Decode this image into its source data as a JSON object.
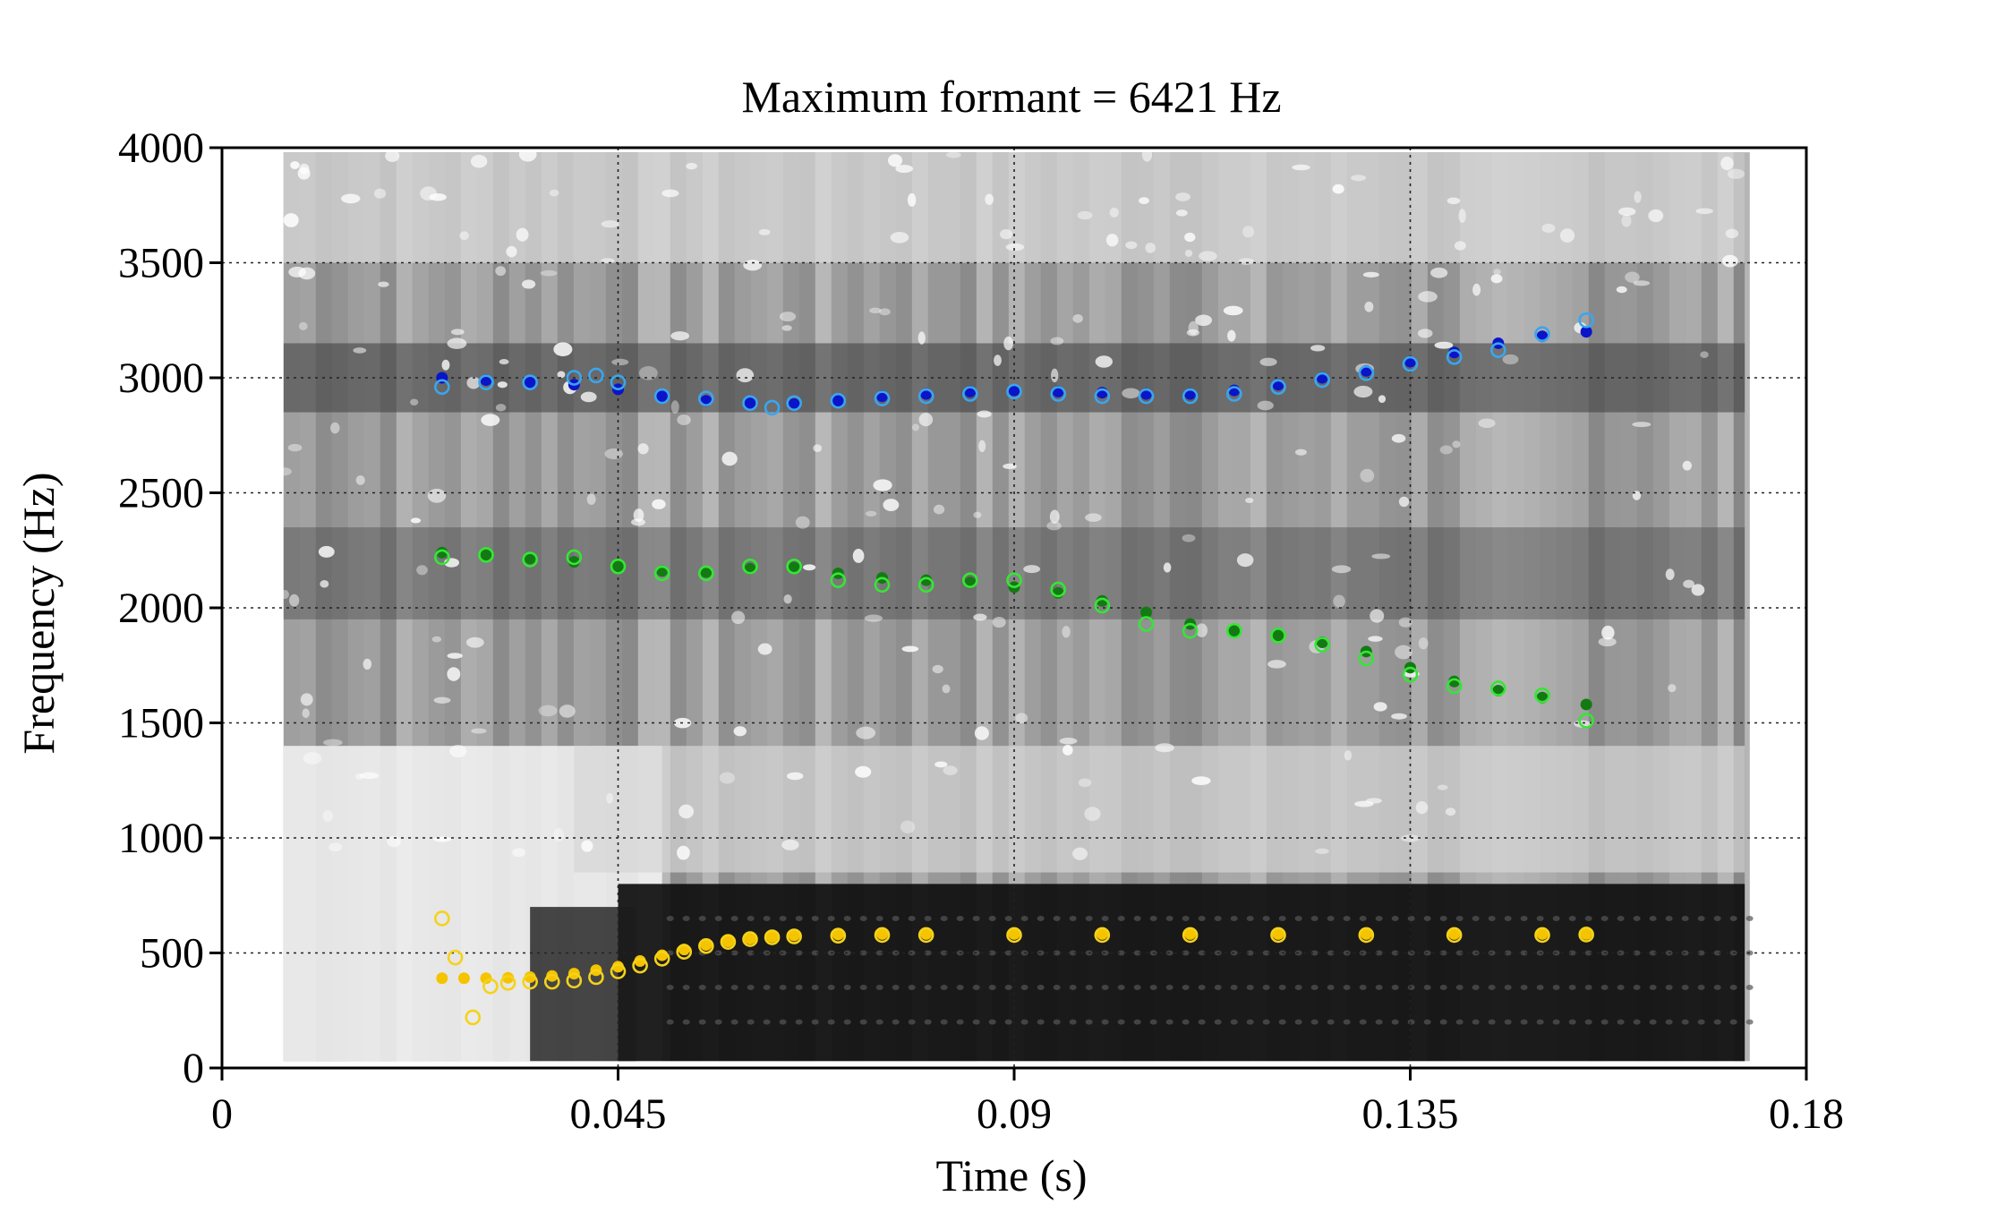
{
  "chart_data": {
    "type": "scatter",
    "title": "Maximum formant = 6421 Hz",
    "xlabel": "Time (s)",
    "ylabel": "Frequency (Hz)",
    "xlim": [
      0,
      0.18
    ],
    "ylim": [
      0,
      4000
    ],
    "x_ticks": [
      0,
      0.045,
      0.09,
      0.135,
      0.18
    ],
    "x_tick_labels": [
      "0",
      "0.045",
      "0.09",
      "0.135",
      "0.18"
    ],
    "y_ticks": [
      0,
      500,
      1000,
      1500,
      2000,
      2500,
      3000,
      3500,
      4000
    ],
    "y_tick_labels": [
      "0",
      "500",
      "1000",
      "1500",
      "2000",
      "2500",
      "3000",
      "3500",
      "4000"
    ],
    "grid": "dotted at ticks",
    "background": "grayscale spectrogram, 0.007 s to 0.173 s",
    "colors": {
      "F1_tracked": "#f5c400",
      "F1_measured": "#f5d21a",
      "F2_tracked": "#137a13",
      "F2_measured": "#35e635",
      "F3_tracked": "#0a14c8",
      "F3_measured": "#3aa6ee"
    },
    "series": [
      {
        "marker": "filled",
        "color": "#f5c400",
        "x": [
          0.025,
          0.0275,
          0.03,
          0.0325,
          0.035,
          0.0375,
          0.04,
          0.0425,
          0.045,
          0.0475,
          0.05,
          0.0525,
          0.055,
          0.0575,
          0.06,
          0.0625,
          0.065,
          0.07,
          0.075,
          0.08,
          0.09,
          0.1,
          0.11,
          0.12,
          0.13,
          0.14,
          0.15,
          0.155
        ],
        "y": [
          390,
          390,
          390,
          392,
          395,
          400,
          410,
          425,
          440,
          465,
          490,
          515,
          535,
          550,
          562,
          570,
          576,
          580,
          582,
          582,
          582,
          582,
          582,
          582,
          582,
          582,
          582,
          582
        ]
      },
      {
        "marker": "hollow",
        "color": "#f5d21a",
        "x": [
          0.025,
          0.0265,
          0.0285,
          0.0305,
          0.0325,
          0.035,
          0.0375,
          0.04,
          0.0425,
          0.045,
          0.0475,
          0.05,
          0.0525,
          0.055,
          0.0575,
          0.06,
          0.0625,
          0.065,
          0.07,
          0.075,
          0.08,
          0.09,
          0.1,
          0.11,
          0.12,
          0.13,
          0.14,
          0.15,
          0.155
        ],
        "y": [
          650,
          480,
          220,
          355,
          370,
          375,
          375,
          380,
          395,
          420,
          445,
          475,
          505,
          530,
          548,
          560,
          568,
          572,
          575,
          578,
          578,
          578,
          578,
          578,
          578,
          578,
          578,
          578,
          580
        ]
      },
      {
        "marker": "filled",
        "color": "#137a13",
        "x": [
          0.025,
          0.03,
          0.035,
          0.04,
          0.045,
          0.05,
          0.055,
          0.06,
          0.065,
          0.07,
          0.075,
          0.08,
          0.085,
          0.09,
          0.095,
          0.1,
          0.105,
          0.11,
          0.115,
          0.12,
          0.125,
          0.13,
          0.135,
          0.14,
          0.145,
          0.15,
          0.155
        ],
        "y": [
          2240,
          2230,
          2215,
          2200,
          2180,
          2160,
          2155,
          2170,
          2175,
          2150,
          2130,
          2120,
          2110,
          2090,
          2065,
          2030,
          1980,
          1930,
          1900,
          1880,
          1850,
          1810,
          1740,
          1680,
          1640,
          1610,
          1580
        ]
      },
      {
        "marker": "hollow",
        "color": "#35e635",
        "x": [
          0.025,
          0.03,
          0.035,
          0.04,
          0.045,
          0.05,
          0.055,
          0.06,
          0.065,
          0.07,
          0.075,
          0.08,
          0.085,
          0.09,
          0.095,
          0.1,
          0.105,
          0.11,
          0.115,
          0.12,
          0.125,
          0.13,
          0.135,
          0.14,
          0.145,
          0.15,
          0.155
        ],
        "y": [
          2220,
          2230,
          2210,
          2220,
          2180,
          2150,
          2150,
          2180,
          2180,
          2120,
          2100,
          2100,
          2120,
          2120,
          2080,
          2010,
          1930,
          1900,
          1900,
          1880,
          1840,
          1780,
          1710,
          1660,
          1650,
          1620,
          1510
        ]
      },
      {
        "marker": "filled",
        "color": "#0a14c8",
        "x": [
          0.025,
          0.03,
          0.035,
          0.04,
          0.045,
          0.05,
          0.055,
          0.06,
          0.065,
          0.07,
          0.075,
          0.08,
          0.085,
          0.09,
          0.095,
          0.1,
          0.105,
          0.11,
          0.115,
          0.12,
          0.125,
          0.13,
          0.135,
          0.14,
          0.145,
          0.15,
          0.155
        ],
        "y": [
          3000,
          2990,
          2980,
          2970,
          2950,
          2920,
          2900,
          2890,
          2885,
          2900,
          2920,
          2930,
          2940,
          2945,
          2940,
          2935,
          2930,
          2930,
          2945,
          2970,
          3000,
          3030,
          3070,
          3110,
          3150,
          3180,
          3200
        ]
      },
      {
        "marker": "hollow",
        "color": "#3aa6ee",
        "x": [
          0.025,
          0.03,
          0.035,
          0.04,
          0.0425,
          0.045,
          0.05,
          0.055,
          0.06,
          0.0625,
          0.065,
          0.07,
          0.075,
          0.08,
          0.085,
          0.09,
          0.095,
          0.1,
          0.105,
          0.11,
          0.115,
          0.12,
          0.125,
          0.13,
          0.135,
          0.14,
          0.145,
          0.15,
          0.155
        ],
        "y": [
          2960,
          2980,
          2980,
          3000,
          3010,
          2980,
          2920,
          2910,
          2890,
          2870,
          2890,
          2900,
          2910,
          2920,
          2930,
          2940,
          2930,
          2920,
          2920,
          2920,
          2930,
          2960,
          2990,
          3020,
          3060,
          3090,
          3120,
          3190,
          3250
        ]
      }
    ]
  }
}
